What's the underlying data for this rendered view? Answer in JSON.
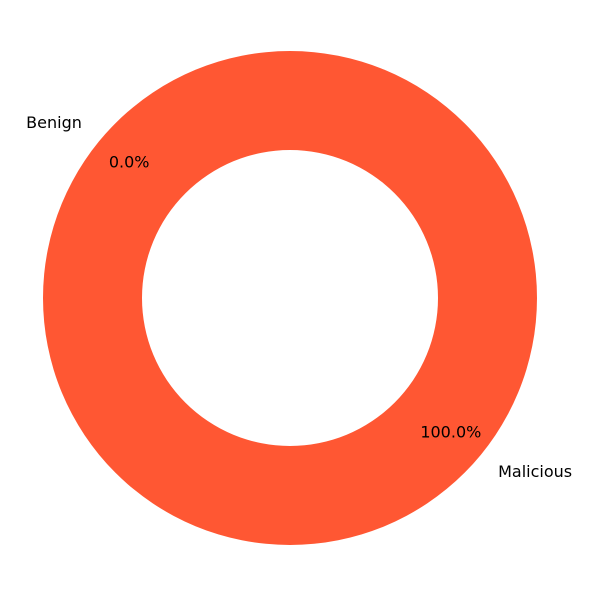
{
  "chart_data": {
    "type": "pie",
    "donut": true,
    "categories": [
      "Benign",
      "Malicious"
    ],
    "values": [
      0.0,
      100.0
    ],
    "percent_labels": [
      "0.0%",
      "100.0%"
    ],
    "colors": [
      "#ff5733",
      "#ff5733"
    ],
    "start_angle_deg": 140,
    "title": "",
    "legend": "none"
  }
}
